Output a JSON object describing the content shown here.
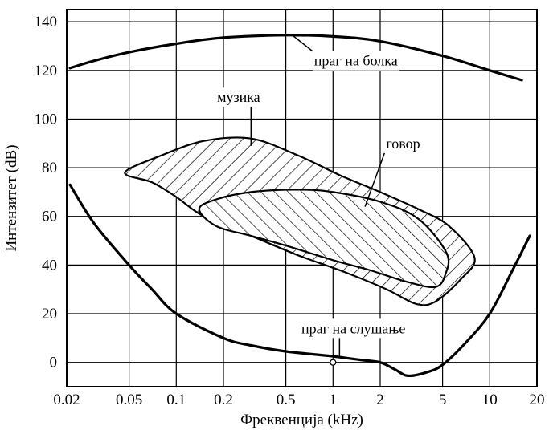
{
  "chart_data": {
    "type": "area",
    "xlabel": "Фреквенција (kHz)",
    "ylabel": "Интензитет (dB)",
    "x_scale": "log",
    "xlim": [
      0.02,
      20
    ],
    "ylim": [
      -10,
      145
    ],
    "grid": true,
    "x_ticks": [
      {
        "value": 0.02,
        "label": "0.02"
      },
      {
        "value": 0.05,
        "label": "0.05"
      },
      {
        "value": 0.1,
        "label": "0.1"
      },
      {
        "value": 0.2,
        "label": "0.2"
      },
      {
        "value": 0.5,
        "label": "0.5"
      },
      {
        "value": 1,
        "label": "1"
      },
      {
        "value": 2,
        "label": "2"
      },
      {
        "value": 5,
        "label": "5"
      },
      {
        "value": 10,
        "label": "10"
      },
      {
        "value": 20,
        "label": "20"
      }
    ],
    "y_ticks": [
      {
        "value": 0,
        "label": "0"
      },
      {
        "value": 20,
        "label": "20"
      },
      {
        "value": 40,
        "label": "40"
      },
      {
        "value": 60,
        "label": "60"
      },
      {
        "value": 80,
        "label": "80"
      },
      {
        "value": 100,
        "label": "100"
      },
      {
        "value": 120,
        "label": "120"
      },
      {
        "value": 140,
        "label": "140"
      }
    ],
    "x_grid_values": [
      0.02,
      0.05,
      0.1,
      0.2,
      0.5,
      1,
      2,
      5,
      10
    ],
    "y_grid_values": [
      0,
      20,
      40,
      60,
      80,
      100,
      120,
      140
    ],
    "curves": [
      {
        "name": "праг на болка",
        "points": [
          [
            0.021,
            121
          ],
          [
            0.03,
            124
          ],
          [
            0.05,
            127.5
          ],
          [
            0.1,
            131
          ],
          [
            0.2,
            133.5
          ],
          [
            0.5,
            134.5
          ],
          [
            1,
            134
          ],
          [
            2,
            132
          ],
          [
            5,
            126
          ],
          [
            10,
            120
          ],
          [
            16,
            116
          ]
        ]
      },
      {
        "name": "праг на слушање",
        "points": [
          [
            0.021,
            73
          ],
          [
            0.03,
            57
          ],
          [
            0.05,
            40
          ],
          [
            0.07,
            30
          ],
          [
            0.1,
            20
          ],
          [
            0.2,
            10
          ],
          [
            0.3,
            7
          ],
          [
            0.5,
            4.5
          ],
          [
            1,
            2.5
          ],
          [
            1.5,
            1
          ],
          [
            2,
            0
          ],
          [
            2.5,
            -3
          ],
          [
            3,
            -5.5
          ],
          [
            4,
            -4
          ],
          [
            5,
            -1
          ],
          [
            7,
            8
          ],
          [
            10,
            20
          ],
          [
            14,
            38
          ],
          [
            18,
            52
          ]
        ]
      }
    ],
    "regions": [
      {
        "name": "музика",
        "points": [
          [
            0.047,
            78
          ],
          [
            0.08,
            85
          ],
          [
            0.15,
            91
          ],
          [
            0.3,
            92
          ],
          [
            0.6,
            85
          ],
          [
            1.1,
            77
          ],
          [
            2,
            70
          ],
          [
            3.5,
            63
          ],
          [
            5.5,
            56
          ],
          [
            8,
            43
          ],
          [
            6.5,
            34
          ],
          [
            4.5,
            25
          ],
          [
            3.4,
            24
          ],
          [
            2.2,
            30
          ],
          [
            1.2,
            37
          ],
          [
            0.6,
            44
          ],
          [
            0.3,
            52
          ],
          [
            0.15,
            60
          ],
          [
            0.1,
            68
          ],
          [
            0.07,
            74
          ],
          [
            0.047,
            78
          ]
        ]
      },
      {
        "name": "говор",
        "points": [
          [
            0.14,
            63
          ],
          [
            0.18,
            67
          ],
          [
            0.3,
            70
          ],
          [
            0.6,
            71
          ],
          [
            1,
            70
          ],
          [
            2,
            66
          ],
          [
            3.5,
            59
          ],
          [
            5.3,
            45
          ],
          [
            5.2,
            36
          ],
          [
            4.5,
            31
          ],
          [
            3,
            33
          ],
          [
            1.7,
            38
          ],
          [
            1,
            42
          ],
          [
            0.5,
            48
          ],
          [
            0.3,
            52
          ],
          [
            0.18,
            56
          ],
          [
            0.14,
            63
          ]
        ]
      }
    ],
    "marker": {
      "x": 1,
      "y": 0
    },
    "annotations": [
      {
        "text": "праг на болка",
        "anchor_x": 0.55,
        "anchor_y": 134.5,
        "label_x": 1.4,
        "label_y": 122
      },
      {
        "text": "музика",
        "anchor_x": 0.3,
        "anchor_y": 89,
        "label_x": 0.25,
        "label_y": 107
      },
      {
        "text": "говор",
        "anchor_x": 1.6,
        "anchor_y": 64,
        "label_x": 2.8,
        "label_y": 88
      },
      {
        "text": "праг на слушање",
        "anchor_x": 1.1,
        "anchor_y": 2,
        "label_x": 1.35,
        "label_y": 12
      }
    ]
  }
}
